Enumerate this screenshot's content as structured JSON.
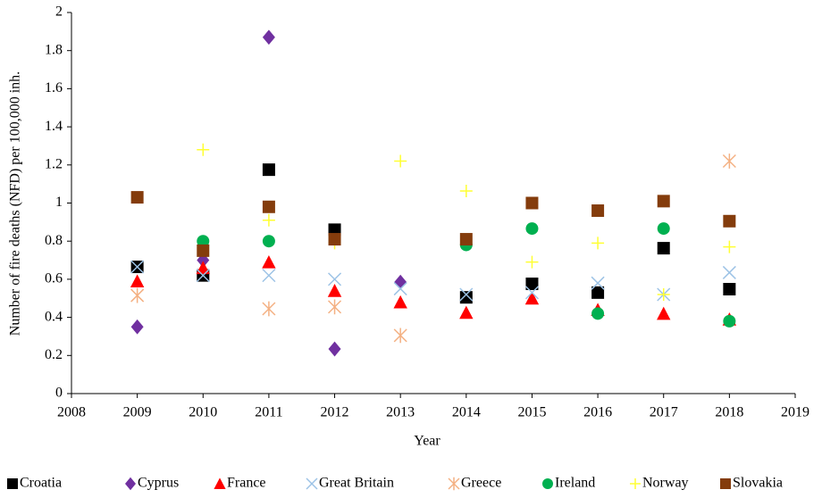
{
  "chart_data": {
    "type": "scatter",
    "x_label": "Year",
    "y_label": "Number of fire deaths (NFD) per 100,000 inh.",
    "x": [
      2009,
      2010,
      2011,
      2012,
      2013,
      2014,
      2015,
      2016,
      2017,
      2018
    ],
    "xlim": [
      2008,
      2019
    ],
    "xticks": [
      2008,
      2009,
      2010,
      2011,
      2012,
      2013,
      2014,
      2015,
      2016,
      2017,
      2018,
      2019
    ],
    "ylim": [
      0,
      2
    ],
    "yticks": [
      0,
      0.2,
      0.4,
      0.6,
      0.8,
      1,
      1.2,
      1.4,
      1.6,
      1.8,
      2
    ],
    "grid": false,
    "legend": "bottom",
    "series": [
      {
        "name": "Croatia",
        "color": "#000000",
        "marker": "square",
        "values": [
          0.665,
          0.62,
          1.175,
          0.86,
          null,
          0.505,
          0.576,
          0.53,
          0.763,
          0.548
        ]
      },
      {
        "name": "Cyprus",
        "color": "#7030a0",
        "marker": "diamond",
        "values": [
          0.35,
          0.7,
          1.87,
          0.234,
          0.585,
          null,
          null,
          null,
          null,
          null
        ]
      },
      {
        "name": "France",
        "color": "#ff0000",
        "marker": "triangle",
        "values": [
          0.59,
          0.66,
          0.69,
          0.54,
          0.48,
          0.425,
          0.5,
          0.44,
          0.42,
          0.39
        ]
      },
      {
        "name": "Great Britain",
        "color": "#9dc3e6",
        "marker": "x",
        "values": [
          0.665,
          0.62,
          0.62,
          0.6,
          0.55,
          0.52,
          0.53,
          0.58,
          0.52,
          0.635
        ]
      },
      {
        "name": "Greece",
        "color": "#f4b183",
        "marker": "star",
        "values": [
          0.515,
          null,
          0.445,
          0.455,
          0.305,
          null,
          null,
          null,
          null,
          1.22
        ]
      },
      {
        "name": "Ireland",
        "color": "#00b050",
        "marker": "circle",
        "values": [
          null,
          0.8,
          0.8,
          null,
          null,
          0.78,
          0.866,
          0.42,
          0.866,
          0.38
        ]
      },
      {
        "name": "Norway",
        "color": "#ffff33",
        "marker": "plus",
        "values": [
          null,
          1.28,
          0.91,
          0.79,
          1.22,
          1.063,
          0.69,
          0.79,
          0.52,
          0.77
        ]
      },
      {
        "name": "Slovakia",
        "color": "#843c0c",
        "marker": "square",
        "values": [
          1.03,
          0.75,
          0.98,
          0.81,
          null,
          0.81,
          1.0,
          0.96,
          1.01,
          0.905
        ]
      }
    ]
  }
}
